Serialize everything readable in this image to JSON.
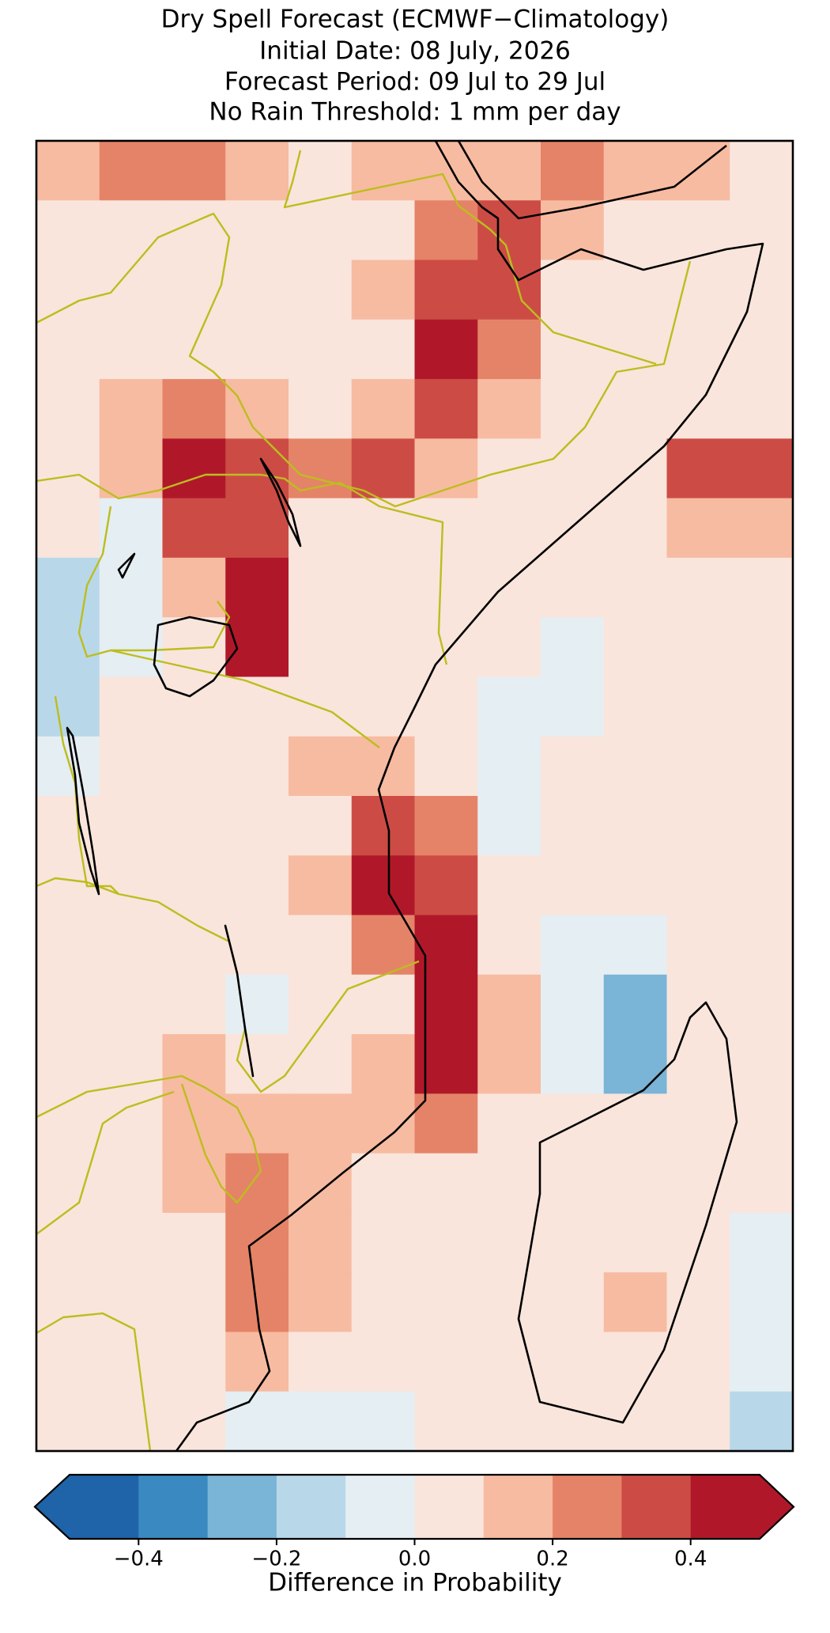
{
  "chart_data": {
    "type": "heatmap",
    "title": [
      "Dry Spell Forecast (ECMWF−Climatology)",
      "Initial Date: 08 July, 2026",
      "Forecast Period: 09 Jul to 29 Jul",
      "No Rain Threshold: 1 mm per day"
    ],
    "colorbar_label": "Difference in Probability",
    "clim": [
      -0.5,
      0.5
    ],
    "colors": [
      "#1f63a8",
      "#3a8ac1",
      "#7ab4d7",
      "#b8d8e9",
      "#e5eef3",
      "#f9e5dc",
      "#f7bba1",
      "#e58368",
      "#cc4c45",
      "#b0182a"
    ],
    "extend": "both",
    "cbar_ticks": [
      {
        "value": -0.4,
        "label": "−0.4"
      },
      {
        "value": -0.2,
        "label": "−0.2"
      },
      {
        "value": 0,
        "label": "0.0"
      },
      {
        "value": 0.2,
        "label": "0.2"
      },
      {
        "value": 0.4,
        "label": "0.4"
      }
    ],
    "values": [
      [
        0.15,
        0.2,
        0.2,
        0.15,
        0.05,
        0.1,
        0.1,
        0.15,
        0.2,
        0.15,
        0.15,
        0.05
      ],
      [
        0.05,
        0.0,
        0.0,
        0.05,
        0.05,
        0.05,
        0.2,
        0.3,
        0.1,
        0.05,
        0.05,
        0.05
      ],
      [
        0.05,
        0.0,
        0.05,
        0.05,
        0.05,
        0.1,
        0.35,
        0.3,
        0.05,
        0.05,
        0.05,
        0.05
      ],
      [
        0.05,
        0.05,
        0.05,
        0.05,
        0.05,
        0.05,
        0.4,
        0.2,
        0.05,
        0.05,
        0.05,
        0.05
      ],
      [
        0.05,
        0.1,
        0.2,
        0.15,
        0.05,
        0.15,
        0.3,
        0.15,
        0.05,
        0.05,
        0.05,
        0.05
      ],
      [
        0.05,
        0.1,
        0.4,
        0.3,
        0.25,
        0.35,
        0.1,
        0.05,
        0.05,
        0.05,
        0.3,
        0.3
      ],
      [
        0.05,
        -0.05,
        0.35,
        0.35,
        0.05,
        0.05,
        0.05,
        0.05,
        0.05,
        0.05,
        0.15,
        0.1
      ],
      [
        -0.15,
        -0.1,
        0.1,
        0.4,
        0.05,
        0.05,
        0.05,
        0.05,
        0.05,
        0.05,
        0.05,
        0.0
      ],
      [
        -0.15,
        -0.1,
        0.05,
        0.4,
        0.05,
        0.05,
        0.05,
        0.05,
        -0.05,
        0.05,
        0.05,
        0.05
      ],
      [
        -0.2,
        0.05,
        0.05,
        0.05,
        0.05,
        0.05,
        0.05,
        -0.05,
        -0.05,
        0.05,
        0.0,
        0.05
      ],
      [
        -0.05,
        0.05,
        0.05,
        0.05,
        0.1,
        0.15,
        0.05,
        -0.05,
        0.0,
        0.05,
        0.05,
        0.05
      ],
      [
        0.05,
        0.05,
        0.05,
        0.05,
        0.05,
        0.35,
        0.2,
        -0.05,
        0.0,
        0.05,
        0.05,
        0.05
      ],
      [
        0.0,
        0.05,
        0.05,
        0.05,
        0.1,
        0.4,
        0.3,
        0.0,
        0.0,
        0.05,
        0.05,
        0.05
      ],
      [
        0.0,
        0.05,
        0.05,
        0.0,
        0.05,
        0.25,
        0.45,
        0.05,
        -0.05,
        -0.1,
        0.05,
        0.05
      ],
      [
        0.0,
        0.05,
        0.05,
        -0.05,
        0.05,
        0.05,
        0.45,
        0.15,
        -0.1,
        -0.3,
        0.05,
        0.05
      ],
      [
        0.05,
        0.05,
        0.1,
        0.05,
        0.05,
        0.15,
        0.45,
        0.15,
        -0.05,
        -0.25,
        0.05,
        0.05
      ],
      [
        0.05,
        0.05,
        0.15,
        0.15,
        0.1,
        0.15,
        0.25,
        0.05,
        0.0,
        0.0,
        0.05,
        0.05
      ],
      [
        0.05,
        0.05,
        0.1,
        0.25,
        0.15,
        0.05,
        0.0,
        0.0,
        0.0,
        0.05,
        0.05,
        0.0
      ],
      [
        0.05,
        0.05,
        0.05,
        0.25,
        0.1,
        0.05,
        0.0,
        0.0,
        0.0,
        0.05,
        0.05,
        -0.05
      ],
      [
        0.05,
        0.05,
        0.05,
        0.2,
        0.15,
        0.05,
        0.0,
        0.0,
        0.0,
        0.1,
        0.05,
        -0.05
      ],
      [
        0.05,
        0.05,
        0.0,
        0.15,
        0.05,
        0.0,
        0.0,
        0.0,
        0.0,
        0.05,
        0.0,
        -0.05
      ],
      [
        0.05,
        0.0,
        0.0,
        -0.05,
        -0.1,
        -0.05,
        0.0,
        0.0,
        0.0,
        0.0,
        0.0,
        -0.15
      ]
    ]
  }
}
